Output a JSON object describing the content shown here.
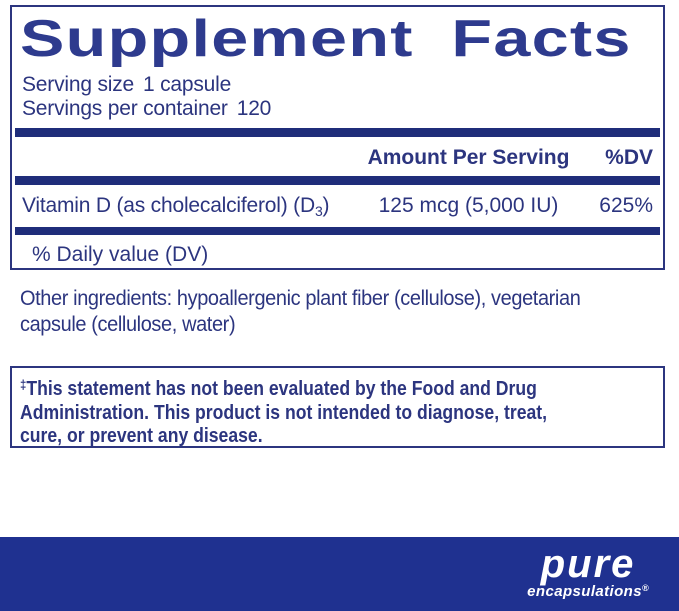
{
  "title": "Supplement Facts",
  "serving": {
    "size_label": "Serving size",
    "size_value": "1 capsule",
    "container_label": "Servings per container",
    "container_value": "120"
  },
  "table": {
    "amount_header": "Amount Per Serving",
    "dv_header": "%DV",
    "row": {
      "name_prefix": "Vitamin D (as cholecalciferol) (D",
      "name_subscript": "3",
      "name_suffix": ")",
      "amount": "125 mcg (5,000 IU)",
      "dv": "625%"
    },
    "footnote": "% Daily value (DV)"
  },
  "other_ingredients": {
    "lines": [
      "Other ingredients: hypoallergenic plant fiber (cellulose), vegetarian",
      "capsule (cellulose, water)"
    ]
  },
  "disclaimer": {
    "dagger": "‡",
    "lines": [
      "This statement has not been evaluated by the Food and Drug",
      "Administration. This product is not intended to diagnose, treat,",
      "cure, or prevent any disease."
    ]
  },
  "footer": {
    "brand": "pure",
    "brand_sub": "encapsulations",
    "registered": "®"
  },
  "colors": {
    "navy": "#2c357f",
    "title": "#2e3b8e",
    "bar": "#1f2d7a",
    "footer": "#1f3190"
  }
}
